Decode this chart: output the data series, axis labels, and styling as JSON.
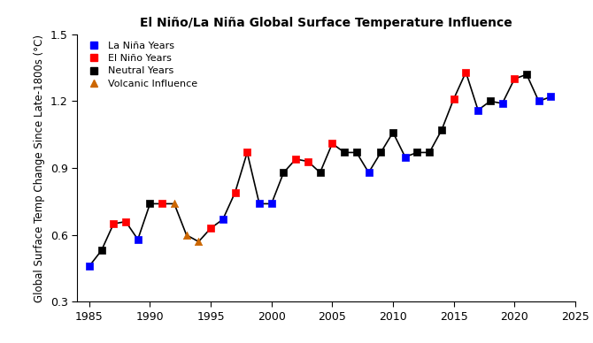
{
  "title": "El Niño/La Niña Global Surface Temperature Influence",
  "ylabel": "Global Surface Temp Change Since Late-1800s (°C)",
  "xlim": [
    1984,
    2025
  ],
  "ylim": [
    0.3,
    1.5
  ],
  "xticks": [
    1985,
    1990,
    1995,
    2000,
    2005,
    2010,
    2015,
    2020,
    2025
  ],
  "yticks": [
    0.3,
    0.6,
    0.9,
    1.2,
    1.5
  ],
  "data": [
    {
      "year": 1985,
      "value": 0.46,
      "type": "la_nina"
    },
    {
      "year": 1986,
      "value": 0.53,
      "type": "neutral"
    },
    {
      "year": 1987,
      "value": 0.65,
      "type": "el_nino"
    },
    {
      "year": 1988,
      "value": 0.66,
      "type": "el_nino"
    },
    {
      "year": 1989,
      "value": 0.58,
      "type": "la_nina"
    },
    {
      "year": 1990,
      "value": 0.74,
      "type": "neutral"
    },
    {
      "year": 1991,
      "value": 0.74,
      "type": "el_nino"
    },
    {
      "year": 1992,
      "value": 0.74,
      "type": "volcanic"
    },
    {
      "year": 1993,
      "value": 0.6,
      "type": "volcanic"
    },
    {
      "year": 1994,
      "value": 0.57,
      "type": "volcanic"
    },
    {
      "year": 1995,
      "value": 0.63,
      "type": "el_nino"
    },
    {
      "year": 1996,
      "value": 0.67,
      "type": "la_nina"
    },
    {
      "year": 1997,
      "value": 0.79,
      "type": "el_nino"
    },
    {
      "year": 1998,
      "value": 0.97,
      "type": "el_nino"
    },
    {
      "year": 1999,
      "value": 0.74,
      "type": "la_nina"
    },
    {
      "year": 2000,
      "value": 0.74,
      "type": "la_nina"
    },
    {
      "year": 2001,
      "value": 0.88,
      "type": "neutral"
    },
    {
      "year": 2002,
      "value": 0.94,
      "type": "el_nino"
    },
    {
      "year": 2003,
      "value": 0.93,
      "type": "el_nino"
    },
    {
      "year": 2004,
      "value": 0.88,
      "type": "neutral"
    },
    {
      "year": 2005,
      "value": 1.01,
      "type": "el_nino"
    },
    {
      "year": 2006,
      "value": 0.97,
      "type": "neutral"
    },
    {
      "year": 2007,
      "value": 0.97,
      "type": "neutral"
    },
    {
      "year": 2008,
      "value": 0.88,
      "type": "la_nina"
    },
    {
      "year": 2009,
      "value": 0.97,
      "type": "neutral"
    },
    {
      "year": 2010,
      "value": 1.06,
      "type": "neutral"
    },
    {
      "year": 2011,
      "value": 0.95,
      "type": "la_nina"
    },
    {
      "year": 2012,
      "value": 0.97,
      "type": "neutral"
    },
    {
      "year": 2013,
      "value": 0.97,
      "type": "neutral"
    },
    {
      "year": 2014,
      "value": 1.07,
      "type": "neutral"
    },
    {
      "year": 2015,
      "value": 1.21,
      "type": "el_nino"
    },
    {
      "year": 2016,
      "value": 1.33,
      "type": "el_nino"
    },
    {
      "year": 2017,
      "value": 1.16,
      "type": "la_nina"
    },
    {
      "year": 2018,
      "value": 1.2,
      "type": "neutral"
    },
    {
      "year": 2019,
      "value": 1.19,
      "type": "la_nina"
    },
    {
      "year": 2020,
      "value": 1.3,
      "type": "el_nino"
    },
    {
      "year": 2021,
      "value": 1.32,
      "type": "neutral"
    },
    {
      "year": 2022,
      "value": 1.2,
      "type": "la_nina"
    },
    {
      "year": 2023,
      "value": 1.22,
      "type": "la_nina"
    }
  ],
  "colors": {
    "la_nina": "#0000FF",
    "el_nino": "#FF0000",
    "neutral": "#000000",
    "volcanic": "#CC6600"
  },
  "markers": {
    "la_nina": "s",
    "el_nino": "s",
    "neutral": "s",
    "volcanic": "^"
  },
  "legend_labels": {
    "la_nina": "La Niña Years",
    "el_nino": "El Niño Years",
    "neutral": "Neutral Years",
    "volcanic": "Volcanic Influence"
  },
  "background_color": "#ffffff",
  "marker_size": 6,
  "line_color": "#000000",
  "line_width": 1.2,
  "figsize": [
    6.7,
    3.88
  ],
  "dpi": 100
}
